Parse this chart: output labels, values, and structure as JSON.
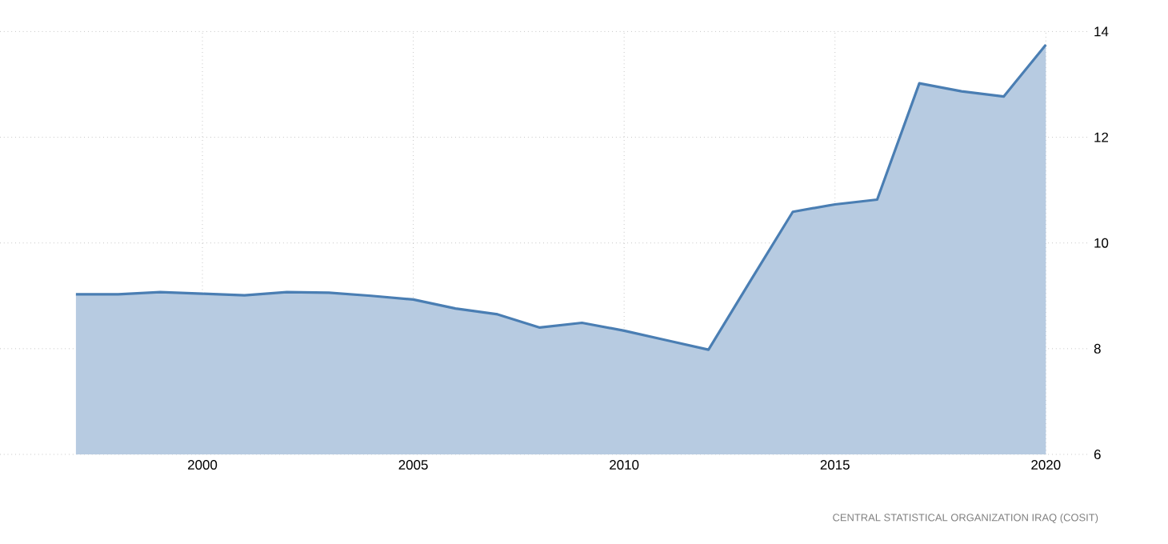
{
  "chart_data": {
    "type": "area",
    "x": [
      1997,
      1998,
      1999,
      2000,
      2001,
      2002,
      2003,
      2004,
      2005,
      2006,
      2007,
      2008,
      2009,
      2010,
      2011,
      2012,
      2013,
      2014,
      2015,
      2016,
      2017,
      2018,
      2019,
      2020
    ],
    "values": [
      9.03,
      9.03,
      9.07,
      9.04,
      9.01,
      9.07,
      9.06,
      9.0,
      8.93,
      8.76,
      8.65,
      8.4,
      8.49,
      8.34,
      8.16,
      7.98,
      9.29,
      10.59,
      10.73,
      10.82,
      13.02,
      12.87,
      12.77,
      13.75
    ],
    "color": "#4a7eb3",
    "xlim": [
      1995.2,
      2021
    ],
    "xticks": [
      2000,
      2005,
      2010,
      2015,
      2020
    ],
    "ylim": [
      6,
      14
    ],
    "yticks": [
      6,
      8,
      10,
      12,
      14
    ],
    "grid": true,
    "annotations": [
      "CENTRAL STATISTICAL ORGANIZATION IRAQ (COSIT)"
    ]
  }
}
